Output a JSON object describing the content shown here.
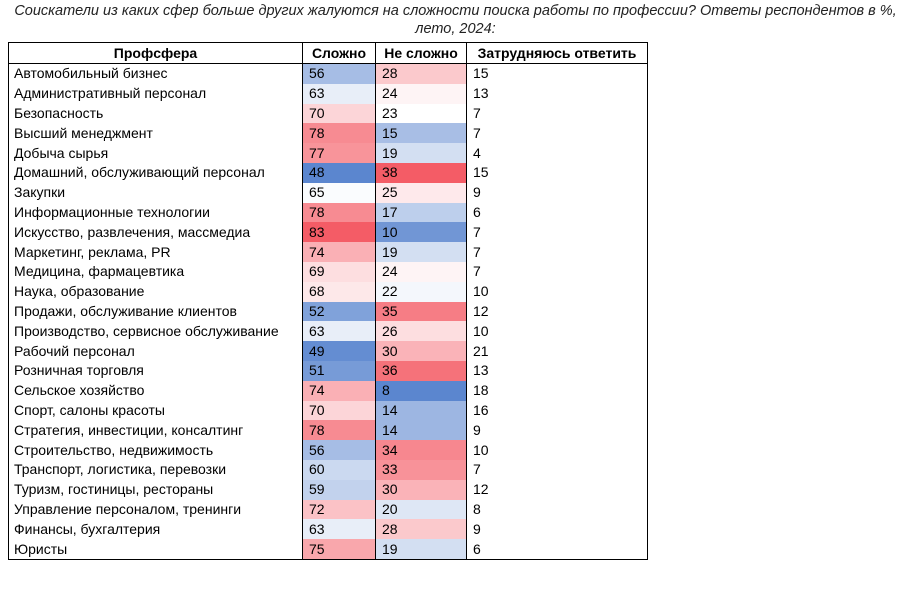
{
  "chart_data": {
    "type": "table",
    "title": "Соискатели из каких сфер больше других жалуются на сложности поиска работы по профессии? Ответы респондентов в %, лето, 2024:",
    "columns": [
      "Профсфера",
      "Сложно",
      "Не сложно",
      "Затрудняюсь ответить"
    ],
    "rows": [
      [
        "Автомобильный бизнес",
        56,
        28,
        15
      ],
      [
        "Административный персонал",
        63,
        24,
        13
      ],
      [
        "Безопасность",
        70,
        23,
        7
      ],
      [
        "Высший менеджмент",
        78,
        15,
        7
      ],
      [
        "Добыча сырья",
        77,
        19,
        4
      ],
      [
        "Домашний, обслуживающий персонал",
        48,
        38,
        15
      ],
      [
        "Закупки",
        65,
        25,
        9
      ],
      [
        "Информационные технологии",
        78,
        17,
        6
      ],
      [
        "Искусство, развлечения, массмедиа",
        83,
        10,
        7
      ],
      [
        "Маркетинг, реклама, PR",
        74,
        19,
        7
      ],
      [
        "Медицина, фармацевтика",
        69,
        24,
        7
      ],
      [
        "Наука, образование",
        68,
        22,
        10
      ],
      [
        "Продажи, обслуживание клиентов",
        52,
        35,
        12
      ],
      [
        "Производство, сервисное обслуживание",
        63,
        26,
        10
      ],
      [
        "Рабочий персонал",
        49,
        30,
        21
      ],
      [
        "Розничная торговля",
        51,
        36,
        13
      ],
      [
        "Сельское хозяйство",
        74,
        8,
        18
      ],
      [
        "Спорт, салоны красоты",
        70,
        14,
        16
      ],
      [
        "Стратегия, инвестиции, консалтинг",
        78,
        14,
        9
      ],
      [
        "Строительство, недвижимость",
        56,
        34,
        10
      ],
      [
        "Транспорт, логистика, перевозки",
        60,
        33,
        7
      ],
      [
        "Туризм, гостиницы, рестораны",
        59,
        30,
        12
      ],
      [
        "Управление персоналом, тренинги",
        72,
        20,
        8
      ],
      [
        "Финансы, бухгалтерия",
        63,
        28,
        9
      ],
      [
        "Юристы",
        75,
        19,
        6
      ]
    ],
    "colors": {
      "low": "#5b86cf",
      "mid": "#ffffff",
      "high": "#f45c66"
    }
  }
}
